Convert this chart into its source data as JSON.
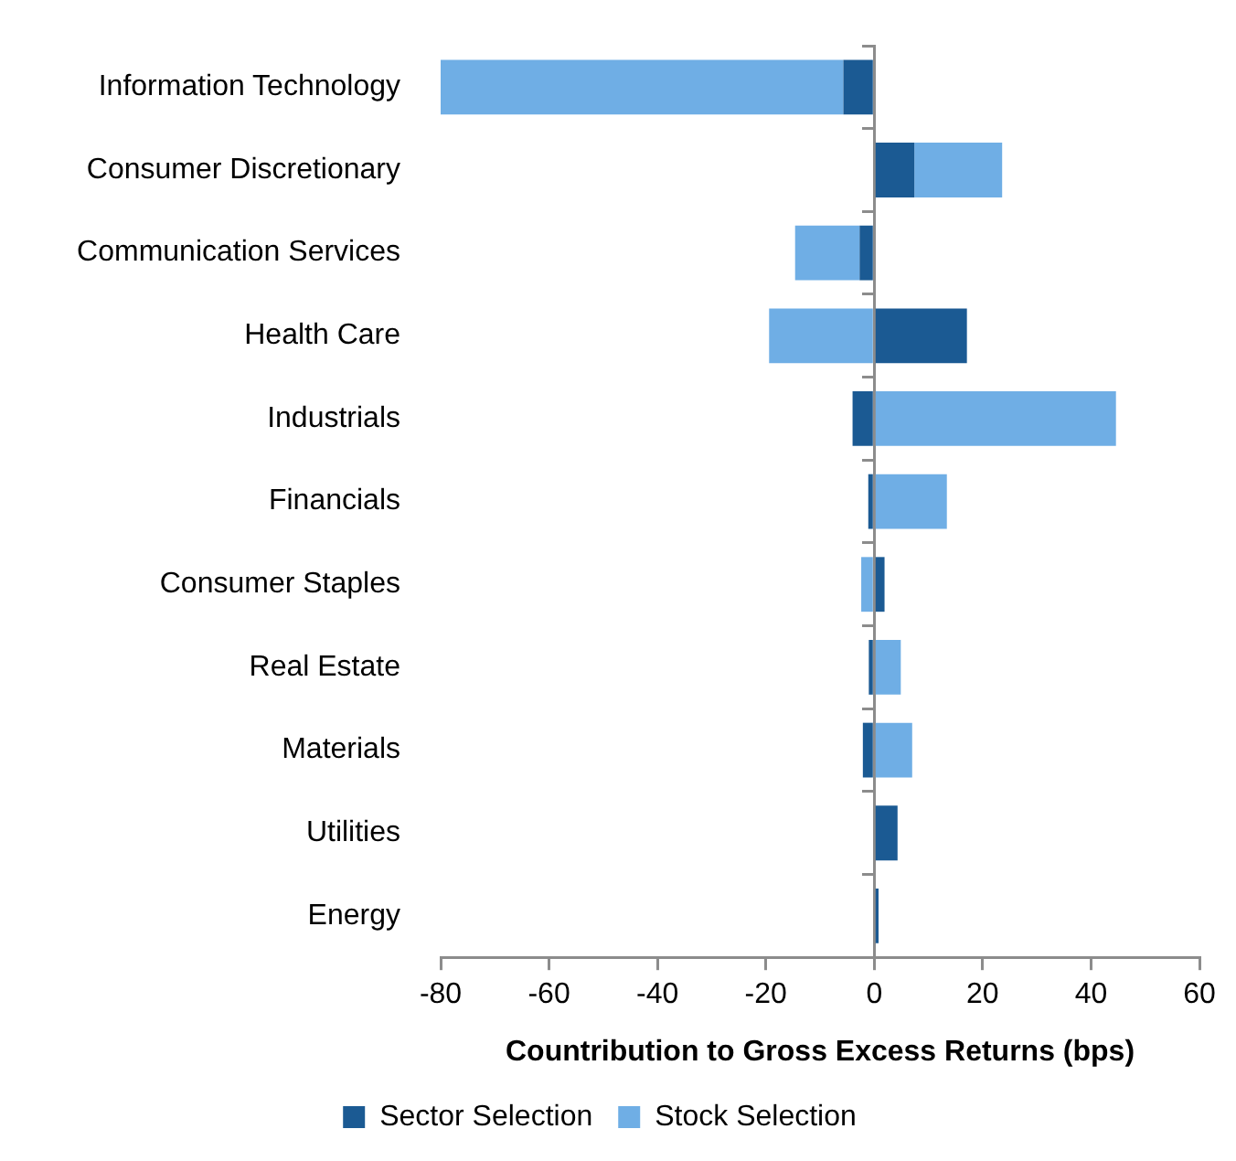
{
  "chart_data": {
    "type": "bar",
    "orientation": "horizontal",
    "stacked": true,
    "xlabel": "Countribution to Gross Excess Returns (bps)",
    "categories": [
      "Information Technology",
      "Consumer Discretionary",
      "Communication Services",
      "Health Care",
      "Industrials",
      "Financials",
      "Consumer Staples",
      "Real Estate",
      "Materials",
      "Utilities",
      "Energy"
    ],
    "series": [
      {
        "name": "Sector Selection",
        "color": "#1b5a93",
        "values": [
          -5.7,
          7.4,
          -2.7,
          17.1,
          -4.0,
          -1.1,
          1.9,
          -1.0,
          -2.1,
          4.3,
          0.8
        ]
      },
      {
        "name": "Stock Selection",
        "color": "#6faee5",
        "values": [
          -74.3,
          16.2,
          -11.9,
          -19.4,
          44.6,
          13.4,
          -2.4,
          4.9,
          7.0,
          0,
          0
        ]
      }
    ],
    "xlim": [
      -80,
      60
    ],
    "xticks": [
      -80,
      -60,
      -40,
      -20,
      0,
      20,
      40,
      60
    ],
    "legend": "bottom"
  }
}
